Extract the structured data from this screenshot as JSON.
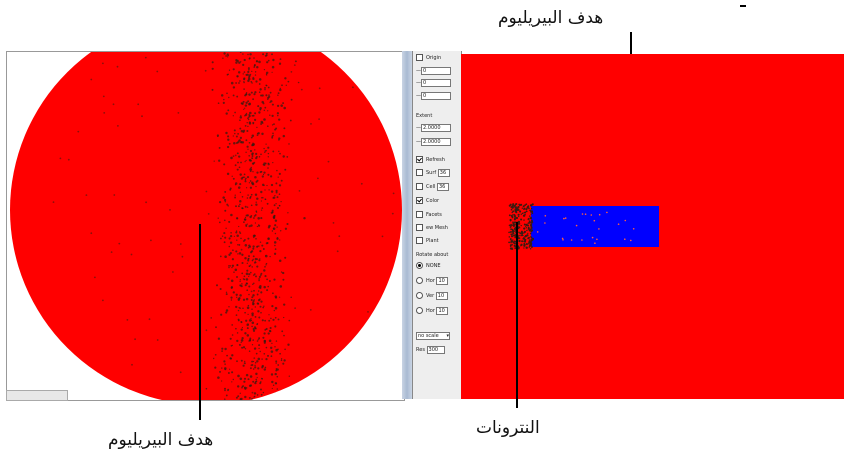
{
  "annotations": {
    "target_top": "هدف البيريليوم",
    "target_bottom": "هدف البيريليوم",
    "neutrons": "النترونات"
  },
  "controls": {
    "origin_label": "Origin",
    "origin_fields": [
      "0",
      "0",
      "0"
    ],
    "extent_label": "Extent",
    "extent_fields": [
      "2.0000",
      "2.0000"
    ],
    "refresh_label": "Refresh",
    "surf_label": "Surf",
    "surf_value": "36",
    "cell_label": "Cell",
    "cell_value": "36",
    "color_label": "Color",
    "facets_label": "Facets",
    "mesh_label": "ew Mesh",
    "plane_label": "Plant",
    "rotate_label": "Rotate about",
    "rot_none": "NONE",
    "rot_hor": "Hor",
    "rot_hor_value": "10",
    "rot_ver": "Ver",
    "rot_ver_value": "10",
    "rot_hor2": "Hor",
    "rot_hor2_value": "10",
    "scale_select": "no scale",
    "res_label": "Res",
    "res_value": "300"
  },
  "colors": {
    "material": "#ff0000",
    "beryllium": "#0000ff",
    "particles": "#3a1a10"
  }
}
